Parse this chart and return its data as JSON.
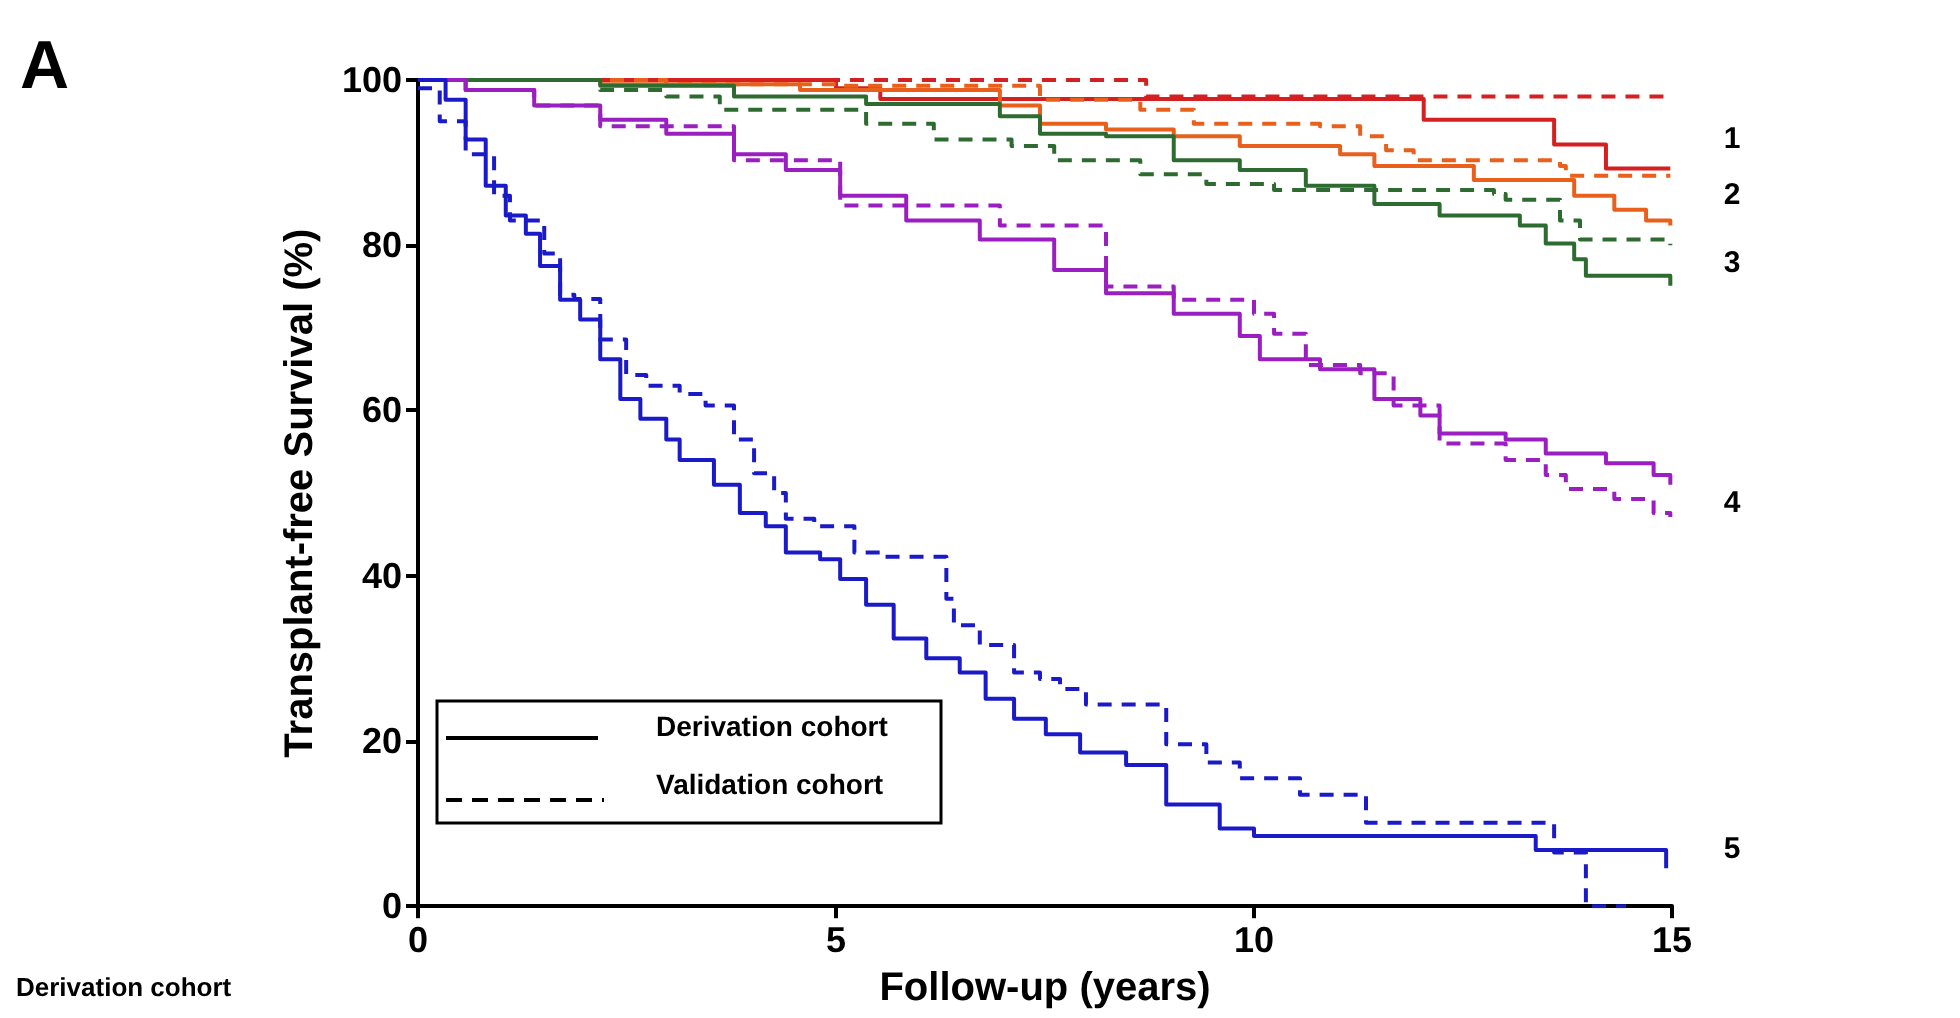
{
  "chart_data": {
    "type": "step",
    "xlabel": "Follow-up (years)",
    "ylabel": "Transplant-free Survival (%)",
    "xlim": [
      0,
      15
    ],
    "xticks": [
      0,
      5,
      10,
      15
    ],
    "ylim": [
      0,
      100
    ],
    "yticks": [
      0,
      20,
      40,
      60,
      80,
      100
    ],
    "grid": false,
    "marker": "none",
    "annotations": [
      "A",
      "Derivation cohort",
      "Validation cohort",
      "Derivation cohort",
      "1",
      "2",
      "3",
      "4",
      "5"
    ],
    "series": [
      {
        "color": "#d42020",
        "line_style": "solid",
        "x": [
          0,
          5.0,
          5.53,
          12.03,
          13.59,
          14.21,
          14.98
        ],
        "values": [
          100,
          99,
          97.7,
          95.2,
          92.2,
          89.3,
          89.3
        ]
      },
      {
        "color": "#d42020",
        "line_style": "dashed",
        "x": [
          0,
          8.71,
          14.98
        ],
        "values": [
          100,
          98,
          98
        ]
      },
      {
        "color": "#e8601c",
        "line_style": "solid",
        "x": [
          0,
          2.18,
          4.57,
          6.96,
          7.44,
          8.23,
          9.04,
          9.83,
          11.03,
          11.44,
          12.63,
          13.83,
          14.31,
          14.69,
          14.98
        ],
        "values": [
          100,
          99.5,
          98.8,
          96.9,
          94.7,
          94,
          93.2,
          92,
          91,
          89.6,
          87.9,
          86,
          84.3,
          83,
          82.4
        ]
      },
      {
        "color": "#e8601c",
        "line_style": "dashed",
        "x": [
          0,
          2.97,
          5.0,
          7.44,
          8.64,
          9.28,
          10.79,
          11.27,
          11.58,
          11.91,
          13.66,
          13.73,
          14.98
        ],
        "values": [
          100,
          99.5,
          99.3,
          97.6,
          96.4,
          94.7,
          94.4,
          93.2,
          91.5,
          90.3,
          89.6,
          88.4,
          88.4
        ]
      },
      {
        "color": "#2e6b30",
        "line_style": "solid",
        "x": [
          0,
          2.18,
          3.78,
          5.36,
          6.96,
          7.44,
          8.23,
          9.04,
          9.83,
          10.62,
          11.44,
          12.22,
          13.18,
          13.49,
          13.83,
          13.97,
          14.93,
          14.98
        ],
        "values": [
          100,
          99.3,
          98,
          97.1,
          95.6,
          93.5,
          93.2,
          90.3,
          89.1,
          87.2,
          85,
          83.6,
          82.4,
          80.2,
          78.3,
          76.3,
          76.3,
          75.1
        ]
      },
      {
        "color": "#2e6b30",
        "line_style": "dashed",
        "x": [
          0,
          2.18,
          2.97,
          3.61,
          5.05,
          5.36,
          6.17,
          7.1,
          7.61,
          8.64,
          9.43,
          10.24,
          12.87,
          13.01,
          13.66,
          13.9,
          14.98
        ],
        "values": [
          100,
          98.8,
          98,
          96.4,
          96.4,
          94.7,
          92.8,
          92,
          90.3,
          88.6,
          87.4,
          86.7,
          86.2,
          85.5,
          83,
          80.7,
          80
        ]
      },
      {
        "color": "#9b1fc0",
        "line_style": "solid",
        "x": [
          0,
          0.57,
          1.39,
          2.18,
          2.97,
          3.78,
          4.4,
          5.05,
          5.84,
          6.72,
          7.61,
          8.23,
          9.04,
          9.83,
          10.07,
          10.79,
          11.44,
          11.99,
          12.22,
          13.01,
          13.49,
          14.21,
          14.78,
          14.98
        ],
        "values": [
          100,
          98.8,
          96.9,
          95.2,
          93.5,
          91,
          89.1,
          86,
          83,
          80.7,
          77,
          74.2,
          71.7,
          69,
          66.2,
          65,
          61.4,
          59.4,
          57.2,
          56.5,
          54.8,
          53.6,
          52.2,
          51
        ]
      },
      {
        "color": "#9b1fc0",
        "line_style": "dashed",
        "x": [
          0,
          0.57,
          1.39,
          2.18,
          3.78,
          5.05,
          6.96,
          8.23,
          9.04,
          10.0,
          10.24,
          10.62,
          11.27,
          11.67,
          12.22,
          13.01,
          13.49,
          13.73,
          14.31,
          14.78,
          14.98
        ],
        "values": [
          100,
          98.8,
          96.9,
          94.4,
          90.3,
          84.8,
          82.4,
          75,
          73.4,
          71.7,
          69.3,
          65.5,
          64.5,
          60.6,
          56,
          54,
          52.2,
          50.5,
          49.3,
          47.6,
          47.1
        ]
      },
      {
        "color": "#1a1ac8",
        "line_style": "solid",
        "x": [
          0,
          0.33,
          0.57,
          0.81,
          1.05,
          1.29,
          1.46,
          1.7,
          1.94,
          2.18,
          2.42,
          2.66,
          2.97,
          3.13,
          3.54,
          3.85,
          4.16,
          4.4,
          4.81,
          5.05,
          5.36,
          5.69,
          6.08,
          6.48,
          6.79,
          7.13,
          7.51,
          7.92,
          8.47,
          8.95,
          9.59,
          10.0,
          13.37,
          14.93
        ],
        "values": [
          100,
          97.6,
          92.8,
          87.2,
          83.6,
          81.4,
          77.5,
          73.4,
          71,
          66.2,
          61.4,
          59,
          56.5,
          54,
          51,
          47.6,
          46,
          42.8,
          42,
          39.6,
          36.5,
          32.4,
          30,
          28.3,
          25.1,
          22.7,
          20.8,
          18.6,
          17.1,
          12.3,
          9.4,
          8.5,
          6.8,
          4.6
        ]
      },
      {
        "color": "#1a1ac8",
        "line_style": "dashed",
        "x": [
          0,
          0.26,
          0.57,
          0.91,
          1.1,
          1.51,
          1.7,
          1.87,
          2.18,
          2.49,
          2.73,
          3.13,
          3.44,
          3.78,
          4.02,
          4.26,
          4.4,
          4.74,
          5.22,
          5.53,
          6.32,
          6.41,
          6.72,
          7.13,
          7.44,
          7.68,
          7.99,
          8.95,
          9.43,
          9.83,
          10.55,
          11.34,
          13.59,
          13.97,
          14.45
        ],
        "values": [
          99,
          95,
          91,
          86,
          83,
          79,
          74,
          73.5,
          68.6,
          64.3,
          63,
          62,
          60.6,
          56.5,
          52.4,
          50,
          46.9,
          46,
          42.8,
          42.3,
          37.2,
          34,
          31.6,
          28.3,
          27.5,
          26.3,
          24.4,
          19.6,
          17.4,
          15.5,
          13.5,
          10.1,
          6.5,
          0,
          0
        ]
      }
    ]
  }
}
